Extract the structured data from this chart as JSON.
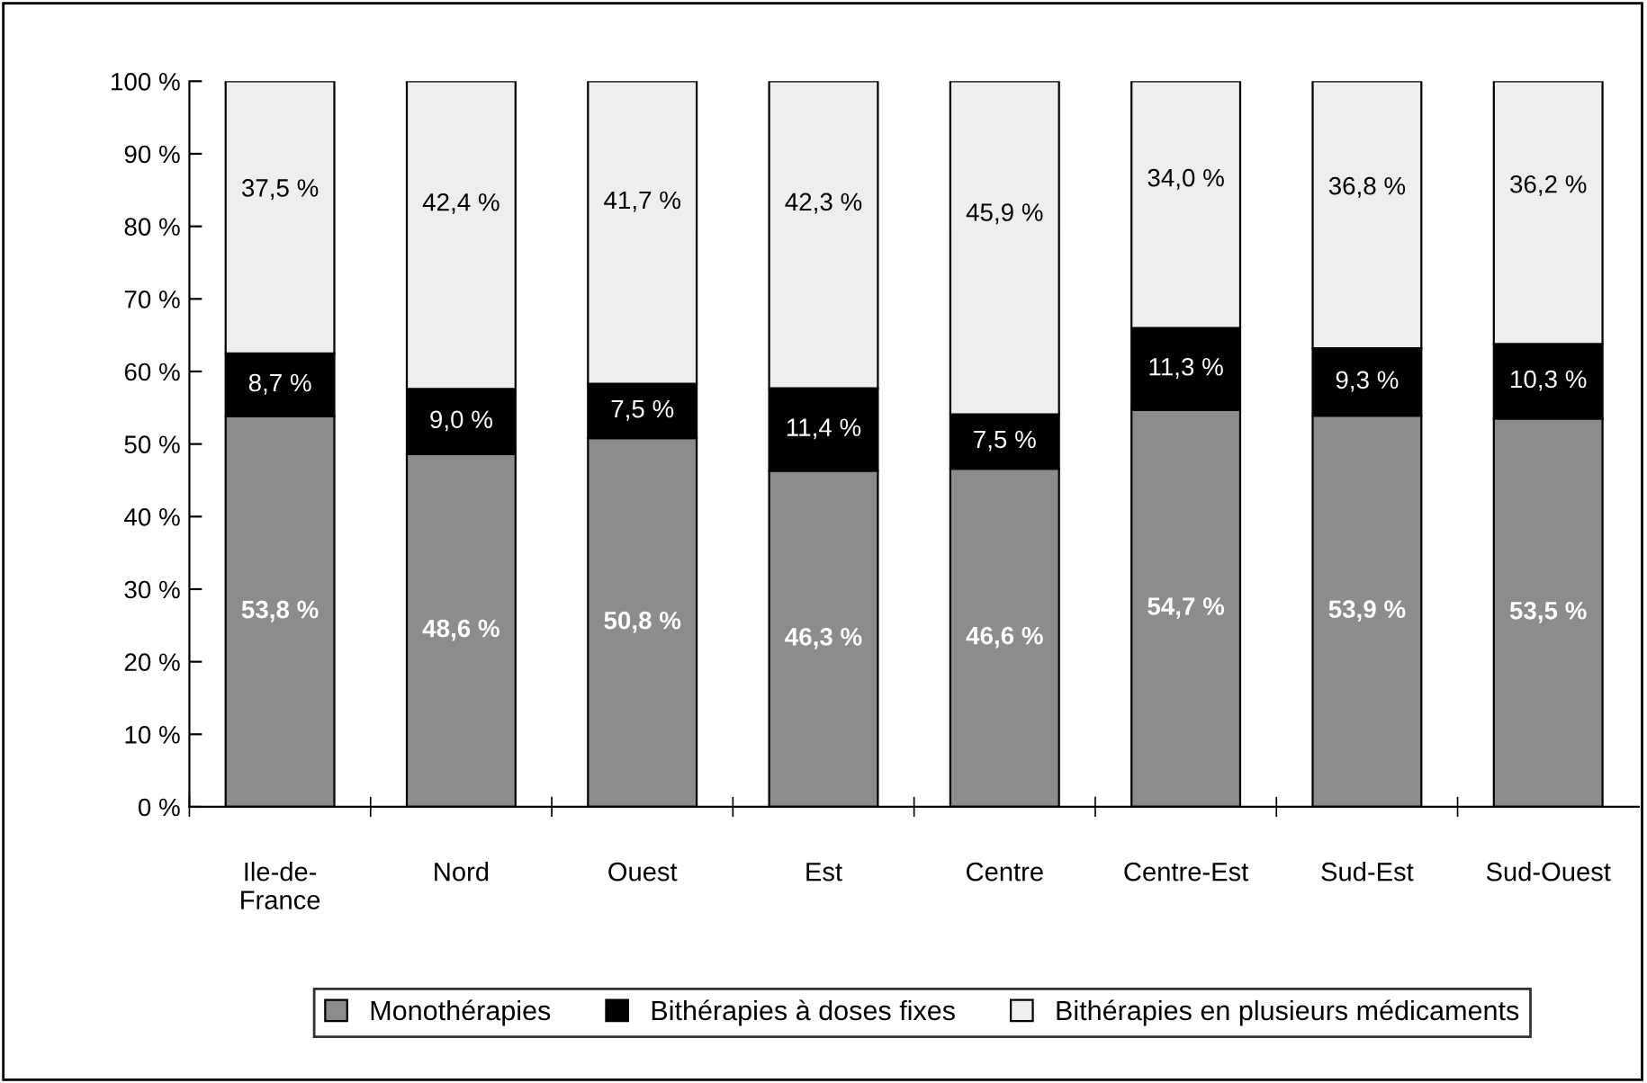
{
  "chart_data": {
    "type": "bar",
    "stacked": true,
    "categories": [
      "Ile-de-\nFrance",
      "Nord",
      "Ouest",
      "Est",
      "Centre",
      "Centre-Est",
      "Sud-Est",
      "Sud-Ouest"
    ],
    "series": [
      {
        "name": "Monothérapies",
        "color": "#8c8c8c",
        "values": [
          53.8,
          48.6,
          50.8,
          46.3,
          46.6,
          54.7,
          53.9,
          53.5
        ],
        "value_labels": [
          "53,8 %",
          "48,6 %",
          "50,8 %",
          "46,3 %",
          "46,6 %",
          "54,7 %",
          "53,9 %",
          "53,5 %"
        ]
      },
      {
        "name": "Bithérapies à doses fixes",
        "color": "#000000",
        "values": [
          8.7,
          9.0,
          7.5,
          11.4,
          7.5,
          11.3,
          9.3,
          10.3
        ],
        "value_labels": [
          "8,7 %",
          "9,0 %",
          "7,5 %",
          "11,4 %",
          "7,5 %",
          "11,3 %",
          "9,3 %",
          "10,3 %"
        ]
      },
      {
        "name": "Bithérapies en plusieurs médicaments",
        "color": "#eeeeee",
        "values": [
          37.5,
          42.4,
          41.7,
          42.3,
          45.9,
          34.0,
          36.8,
          36.2
        ],
        "value_labels": [
          "37,5 %",
          "42,4 %",
          "41,7 %",
          "42,3 %",
          "45,9 %",
          "34,0 %",
          "36,8 %",
          "36,2 %"
        ]
      }
    ],
    "ylim": [
      0,
      100
    ],
    "yticks": [
      {
        "value": 0,
        "label": "0 %"
      },
      {
        "value": 10,
        "label": "10 %"
      },
      {
        "value": 20,
        "label": "20 %"
      },
      {
        "value": 30,
        "label": "30 %"
      },
      {
        "value": 40,
        "label": "40 %"
      },
      {
        "value": 50,
        "label": "50 %"
      },
      {
        "value": 60,
        "label": "60 %"
      },
      {
        "value": 70,
        "label": "70 %"
      },
      {
        "value": 80,
        "label": "80 %"
      },
      {
        "value": 90,
        "label": "90 %"
      },
      {
        "value": 100,
        "label": "100 %"
      }
    ],
    "grid": false,
    "legend": "bottom"
  }
}
